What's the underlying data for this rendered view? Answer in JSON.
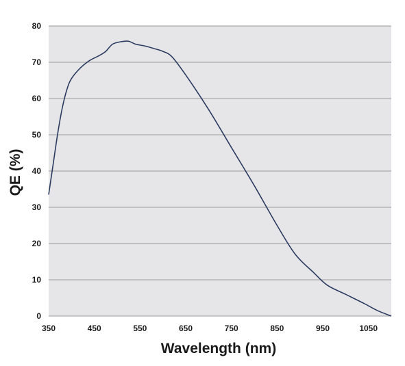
{
  "chart_data": {
    "type": "line",
    "title": "",
    "xlabel": "Wavelength (nm)",
    "ylabel": "QE (%)",
    "xlim": [
      350,
      1100
    ],
    "ylim": [
      0,
      80
    ],
    "x_ticks": [
      350,
      450,
      550,
      650,
      750,
      850,
      950,
      1050
    ],
    "y_ticks": [
      0,
      10,
      20,
      30,
      40,
      50,
      60,
      70,
      80
    ],
    "grid": "horizontal",
    "legend": "none",
    "series": [
      {
        "color": "#2b3a5e",
        "points": [
          [
            350,
            33.5
          ],
          [
            360,
            42
          ],
          [
            370,
            50.5
          ],
          [
            380,
            57.5
          ],
          [
            390,
            62.5
          ],
          [
            400,
            65.5
          ],
          [
            420,
            68.5
          ],
          [
            440,
            70.5
          ],
          [
            460,
            71.8
          ],
          [
            475,
            73
          ],
          [
            490,
            75
          ],
          [
            510,
            75.7
          ],
          [
            525,
            75.8
          ],
          [
            540,
            75
          ],
          [
            560,
            74.5
          ],
          [
            580,
            73.8
          ],
          [
            600,
            73
          ],
          [
            620,
            71.5
          ],
          [
            650,
            66.5
          ],
          [
            700,
            57
          ],
          [
            750,
            46.5
          ],
          [
            800,
            36
          ],
          [
            850,
            25
          ],
          [
            890,
            17
          ],
          [
            930,
            12
          ],
          [
            960,
            8.5
          ],
          [
            1000,
            6
          ],
          [
            1040,
            3.5
          ],
          [
            1070,
            1.5
          ],
          [
            1100,
            0
          ]
        ]
      }
    ]
  },
  "colors": {
    "plot_background": "#e6e6e9",
    "gridline": "#9a9a9a",
    "line": "#2b3a5e",
    "text": "#1a1a1a"
  }
}
